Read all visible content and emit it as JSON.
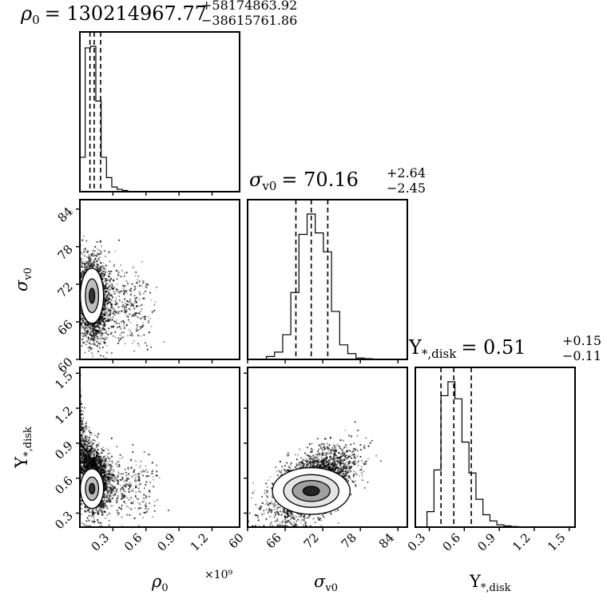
{
  "figure": {
    "type": "corner-plot",
    "parameters": [
      {
        "key": "rho0",
        "label_main": "ρ",
        "label_sub": "0",
        "title": {
          "prefix": "ρ",
          "sub": "0",
          "value": "= 130214967.77",
          "plus": "+58174863.92",
          "minus": "−38615761.86"
        },
        "axis_ticks": [
          0.3,
          0.6,
          0.9,
          1.2
        ],
        "axis_tick_labels": [
          "0.3",
          "0.6",
          "0.9",
          "1.2"
        ],
        "axis_multiplier": "×10⁹",
        "range": [
          0,
          1.45
        ],
        "quantiles": [
          0.0916,
          0.1302,
          0.1884
        ]
      },
      {
        "key": "sigma_v0",
        "label_main": "σ",
        "label_sub": "v0",
        "title": {
          "prefix": "σ",
          "sub": "v0",
          "value": "= 70.16",
          "plus": "+2.64",
          "minus": "−2.45"
        },
        "axis_ticks": [
          60,
          66,
          72,
          78,
          84
        ],
        "axis_tick_labels": [
          "60",
          "66",
          "72",
          "78",
          "84"
        ],
        "range": [
          60,
          85.5
        ],
        "quantiles": [
          67.71,
          70.16,
          72.8
        ]
      },
      {
        "key": "upsilon_disk",
        "label_main": "Υ",
        "label_sub": "*,disk",
        "title": {
          "prefix": "Υ",
          "sub": "*,disk",
          "value": "= 0.51",
          "plus": "+0.15",
          "minus": "−0.11"
        },
        "axis_ticks": [
          0.3,
          0.6,
          0.9,
          1.2,
          1.5
        ],
        "axis_tick_labels": [
          "0.3",
          "0.6",
          "0.9",
          "1.2",
          "1.5"
        ],
        "range": [
          0.18,
          1.55
        ],
        "quantiles": [
          0.4,
          0.51,
          0.66
        ]
      }
    ]
  },
  "chart_data": {
    "type": "corner",
    "parameters": [
      "ρ0",
      "σv0",
      "Υ*,disk"
    ],
    "medians": [
      130214967.77,
      70.16,
      0.51
    ],
    "upper_errors": [
      58174863.92,
      2.64,
      0.15
    ],
    "lower_errors": [
      38615761.86,
      2.45,
      0.11
    ],
    "axis_ranges": {
      "rho0_1e9": [
        0,
        1.45
      ],
      "sigma_v0": [
        60,
        85.5
      ],
      "upsilon_disk": [
        0.18,
        1.55
      ]
    },
    "marginal_histograms": {
      "rho0_1e9": {
        "bin_edges": [
          0.0,
          0.0483,
          0.0966,
          0.1449,
          0.1932,
          0.2415,
          0.2898,
          0.3381,
          0.3864,
          0.4347
        ],
        "counts": [
          0.22,
          0.92,
          0.93,
          0.58,
          0.22,
          0.09,
          0.03,
          0.015,
          0.008
        ]
      },
      "sigma_v0": {
        "bin_edges": [
          63.0,
          64.3,
          65.6,
          66.9,
          68.2,
          69.5,
          70.8,
          72.1,
          73.4,
          74.7,
          76.0,
          77.3,
          78.6,
          79.9
        ],
        "counts": [
          0.02,
          0.05,
          0.17,
          0.46,
          0.86,
          1.0,
          0.87,
          0.74,
          0.33,
          0.1,
          0.04,
          0.01,
          0.005
        ]
      },
      "upsilon_disk": {
        "bin_edges": [
          0.28,
          0.34,
          0.4,
          0.46,
          0.52,
          0.58,
          0.64,
          0.7,
          0.76,
          0.82,
          0.88,
          0.94,
          1.0,
          1.06,
          1.12
        ],
        "counts": [
          0.1,
          0.37,
          0.85,
          0.94,
          0.83,
          0.55,
          0.35,
          0.18,
          0.08,
          0.04,
          0.015,
          0.008,
          0.004,
          0.002
        ]
      }
    },
    "joint_modes": {
      "rho0_vs_sigma_v0": {
        "x": 0.11,
        "y": 70.16
      },
      "rho0_vs_upsilon_disk": {
        "x": 0.11,
        "y": 0.51
      },
      "sigma_v0_vs_upsilon_disk": {
        "x": 70.16,
        "y": 0.49
      }
    },
    "grid": false
  }
}
